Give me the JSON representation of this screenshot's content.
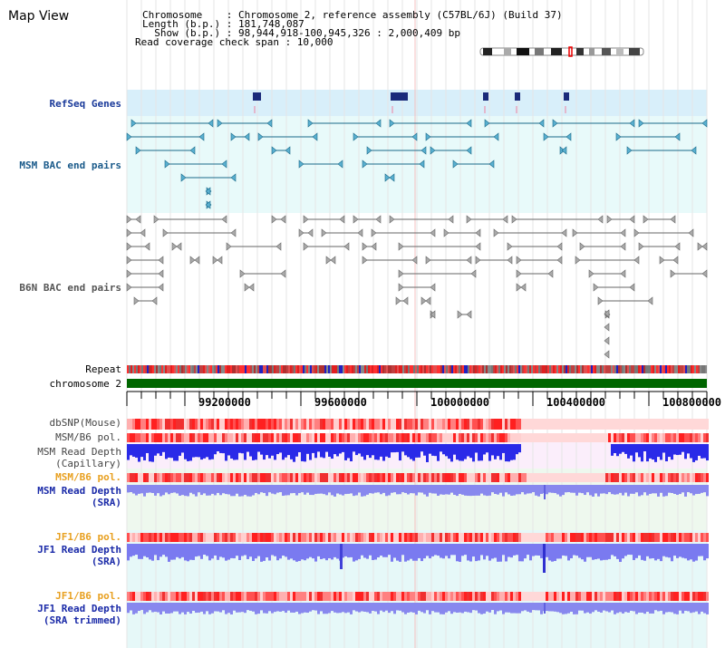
{
  "page_title": "Map View",
  "info": {
    "chromosome_line": "Chromosome    : Chromosome 2, reference assembly (C57BL/6J) (Build 37)",
    "length_line": "Length (b.p.) : 181,748,087",
    "show_line": "  Show (b.p.) : 98,944,918-100,945,326 : 2,000,409 bp",
    "coverage_line": "Read coverage check span : 10,000"
  },
  "tracks": {
    "refseq": "RefSeq Genes",
    "msm_bac": "MSM BAC end pairs",
    "b6n_bac": "B6N BAC end pairs",
    "repeat": "Repeat",
    "chromosome": "chromosome 2",
    "dbsnp": "dbSNP(Mouse)",
    "msm_b6_pol_1": "MSM/B6 pol.",
    "msm_depth_cap_1": "MSM Read Depth",
    "msm_depth_cap_2": "(Capillary)",
    "msm_b6_pol_2": "MSM/B6 pol.",
    "msm_depth_sra_1": "MSM Read Depth",
    "msm_depth_sra_2": "(SRA)",
    "jf1_b6_pol_1": "JF1/B6 pol.",
    "jf1_depth_sra_1": "JF1 Read Depth",
    "jf1_depth_sra_2": "(SRA)",
    "jf1_b6_pol_2": "JF1/B6 pol.",
    "jf1_depth_trim_1": "JF1 Read Depth",
    "jf1_depth_trim_2": "(SRA trimmed)"
  },
  "axis": {
    "ticks": [
      "99200000",
      "99600000",
      "100000000",
      "100400000",
      "100800000"
    ]
  },
  "colors": {
    "refseq_bg": "#d8effa",
    "bac_bg": "#e8fafa",
    "chrom_bar": "#006600",
    "snp_red": "#ff3030",
    "depth_blue": "#2828e0",
    "depth_light": "#8080f0"
  }
}
